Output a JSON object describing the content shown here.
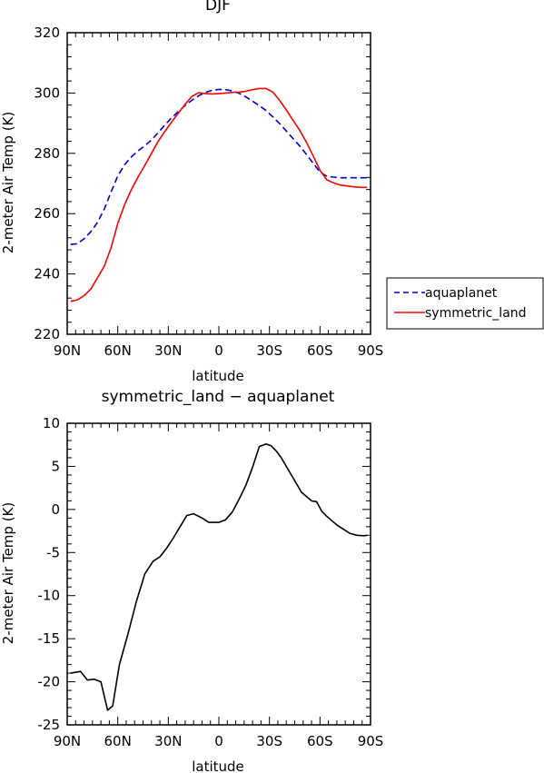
{
  "chart_data": [
    {
      "type": "line",
      "title": "DJF",
      "xlabel": "latitude",
      "ylabel": "2-meter Air Temp (K)",
      "xlim": [
        -90,
        90
      ],
      "ylim": [
        220,
        320
      ],
      "x_ticks": [
        {
          "value": -90,
          "label": "90N"
        },
        {
          "value": -60,
          "label": "60N"
        },
        {
          "value": -30,
          "label": "30N"
        },
        {
          "value": 0,
          "label": "0"
        },
        {
          "value": 30,
          "label": "30S"
        },
        {
          "value": 60,
          "label": "60S"
        },
        {
          "value": 90,
          "label": "90S"
        }
      ],
      "y_ticks": [
        220,
        240,
        260,
        280,
        300,
        320
      ],
      "legend_position": "right",
      "series": [
        {
          "name": "aquaplanet",
          "color": "#0000cc",
          "dash": "dashed",
          "x": [
            -88,
            -84,
            -80,
            -76,
            -72,
            -68,
            -64,
            -60,
            -56,
            -52,
            -48,
            -44,
            -40,
            -36,
            -32,
            -28,
            -24,
            -20,
            -16,
            -12,
            -8,
            -4,
            0,
            4,
            8,
            12,
            16,
            20,
            24,
            28,
            32,
            36,
            40,
            44,
            48,
            52,
            56,
            60,
            64,
            68,
            72,
            76,
            80,
            84,
            88
          ],
          "y": [
            249.8,
            250.0,
            251.7,
            254.0,
            257.1,
            261.5,
            267.1,
            272.5,
            276.2,
            278.8,
            280.8,
            282.5,
            284.4,
            286.9,
            289.4,
            291.8,
            293.9,
            295.9,
            297.6,
            299.1,
            300.2,
            300.9,
            301.2,
            301.1,
            300.7,
            299.9,
            298.7,
            297.3,
            295.8,
            294.2,
            292.1,
            289.9,
            287.4,
            284.9,
            282.4,
            279.6,
            276.7,
            273.8,
            272.4,
            272.1,
            271.9,
            271.9,
            271.9,
            271.9,
            271.9
          ]
        },
        {
          "name": "symmetric_land",
          "color": "#ff0000",
          "dash": "solid",
          "x": [
            -88,
            -84,
            -80,
            -76,
            -72,
            -68,
            -64,
            -60,
            -56,
            -52,
            -48,
            -44,
            -40,
            -36,
            -32,
            -28,
            -24,
            -20,
            -16,
            -12,
            -8,
            -4,
            0,
            4,
            8,
            12,
            16,
            20,
            24,
            28,
            32,
            36,
            40,
            44,
            48,
            52,
            56,
            60,
            64,
            68,
            72,
            76,
            80,
            84,
            88
          ],
          "y": [
            230.9,
            231.4,
            232.8,
            235.0,
            238.8,
            242.6,
            248.6,
            256.8,
            262.9,
            267.9,
            272.1,
            276.0,
            280.0,
            284.0,
            287.3,
            290.4,
            293.4,
            296.3,
            298.9,
            300.1,
            299.8,
            299.7,
            299.8,
            300.0,
            300.2,
            300.3,
            300.6,
            301.1,
            301.5,
            301.5,
            300.3,
            297.6,
            294.4,
            291.0,
            287.6,
            283.6,
            279.1,
            274.4,
            271.2,
            270.2,
            269.5,
            269.2,
            268.9,
            268.7,
            268.7
          ]
        }
      ]
    },
    {
      "type": "line",
      "title": "symmetric_land − aquaplanet",
      "xlabel": "latitude",
      "ylabel": "2-meter Air Temp (K)",
      "xlim": [
        -90,
        90
      ],
      "ylim": [
        -25,
        10
      ],
      "x_ticks": [
        {
          "value": -90,
          "label": "90N"
        },
        {
          "value": -60,
          "label": "60N"
        },
        {
          "value": -30,
          "label": "30N"
        },
        {
          "value": 0,
          "label": "0"
        },
        {
          "value": 30,
          "label": "30S"
        },
        {
          "value": 60,
          "label": "60S"
        },
        {
          "value": 90,
          "label": "90S"
        }
      ],
      "y_ticks": [
        -25,
        -20,
        -15,
        -10,
        -5,
        0,
        5,
        10
      ],
      "series": [
        {
          "color": "#000000",
          "dash": "solid",
          "x": [
            -88,
            -82,
            -78,
            -74,
            -70,
            -66,
            -63,
            -59,
            -54,
            -49,
            -44,
            -39,
            -35,
            -31,
            -27,
            -23,
            -19,
            -15,
            -12,
            -9,
            -6,
            -3,
            0,
            4,
            8,
            12,
            16,
            20,
            24,
            28,
            31,
            34,
            37,
            40,
            43,
            46,
            49,
            52,
            55,
            58,
            61,
            64,
            67,
            70,
            74,
            78,
            82,
            86,
            88
          ],
          "y": [
            -19.0,
            -18.8,
            -19.8,
            -19.7,
            -20.0,
            -23.3,
            -22.8,
            -18.0,
            -14.5,
            -10.7,
            -7.5,
            -6.0,
            -5.5,
            -4.5,
            -3.3,
            -2.0,
            -0.7,
            -0.5,
            -0.8,
            -1.1,
            -1.5,
            -1.5,
            -1.5,
            -1.2,
            -0.3,
            1.2,
            2.8,
            4.9,
            7.3,
            7.6,
            7.4,
            6.8,
            6.0,
            5.0,
            4.0,
            3.0,
            2.0,
            1.5,
            1.0,
            0.9,
            -0.2,
            -0.8,
            -1.3,
            -1.8,
            -2.3,
            -2.8,
            -3.0,
            -3.05,
            -3.0
          ]
        }
      ]
    }
  ]
}
